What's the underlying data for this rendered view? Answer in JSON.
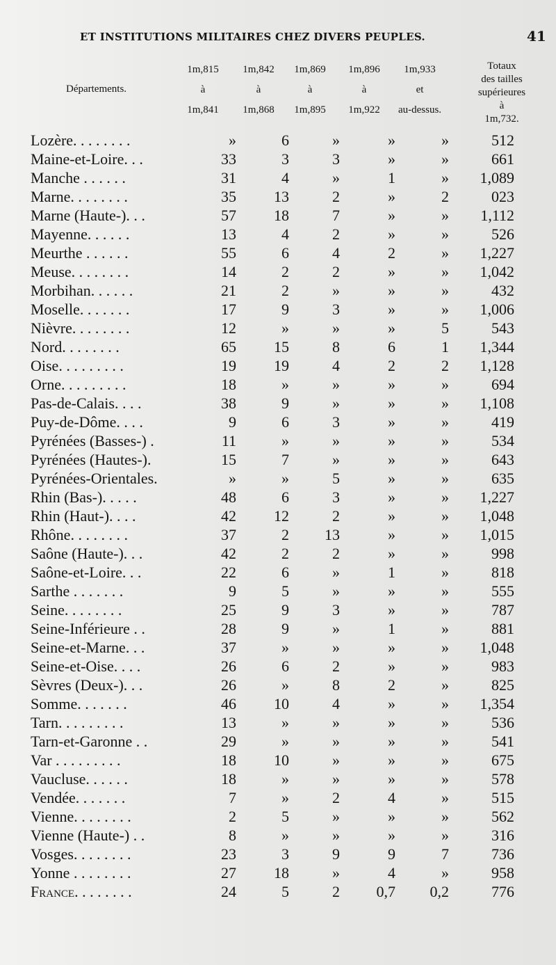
{
  "running_head": "ET INSTITUTIONS MILITAIRES CHEZ DIVERS PEUPLES.",
  "page_number": "41",
  "table": {
    "department_header": "Départements.",
    "columns": [
      {
        "from": "1m,815",
        "sep": "à",
        "to": "1m,841"
      },
      {
        "from": "1m,842",
        "sep": "à",
        "to": "1m,868"
      },
      {
        "from": "1m,869",
        "sep": "à",
        "to": "1m,895"
      },
      {
        "from": "1m,896",
        "sep": "à",
        "to": "1m,922"
      },
      {
        "from": "1m,933",
        "sep": "et",
        "to": "au-dessus."
      }
    ],
    "total_header": [
      "Totaux",
      "des tailles",
      "supérieures",
      "à",
      "1m,732."
    ],
    "rows": [
      [
        "Lozère. . . . . . . .",
        "»",
        "6",
        "»",
        "»",
        "»",
        "512"
      ],
      [
        "Maine-et-Loire. . .",
        "33",
        "3",
        "3",
        "»",
        "»",
        "661"
      ],
      [
        "Manche . . . . . .",
        "31",
        "4",
        "»",
        "1",
        "»",
        "1,089"
      ],
      [
        "Marne. . . . . . . .",
        "35",
        "13",
        "2",
        "»",
        "2",
        "023"
      ],
      [
        "Marne (Haute-). . .",
        "57",
        "18",
        "7",
        "»",
        "»",
        "1,112"
      ],
      [
        "Mayenne. . . . . .",
        "13",
        "4",
        "2",
        "»",
        "»",
        "526"
      ],
      [
        "Meurthe . . . . . .",
        "55",
        "6",
        "4",
        "2",
        "»",
        "1,227"
      ],
      [
        "Meuse. . . . . . . .",
        "14",
        "2",
        "2",
        "»",
        "»",
        "1,042"
      ],
      [
        "Morbihan. . . . . .",
        "21",
        "2",
        "»",
        "»",
        "»",
        "432"
      ],
      [
        "Moselle. . . . . . .",
        "17",
        "9",
        "3",
        "»",
        "»",
        "1,006"
      ],
      [
        "Nièvre. . . . . . . .",
        "12",
        "»",
        "»",
        "»",
        "5",
        "543"
      ],
      [
        "Nord. . . . . . . .",
        "65",
        "15",
        "8",
        "6",
        "1",
        "1,344"
      ],
      [
        "Oise. . . . . . . . .",
        "19",
        "19",
        "4",
        "2",
        "2",
        "1,128"
      ],
      [
        "Orne. . . . . . . . .",
        "18",
        "»",
        "»",
        "»",
        "»",
        "694"
      ],
      [
        "Pas-de-Calais. . . .",
        "38",
        "9",
        "»",
        "»",
        "»",
        "1,108"
      ],
      [
        "Puy-de-Dôme. . . .",
        "9",
        "6",
        "3",
        "»",
        "»",
        "419"
      ],
      [
        "Pyrénées (Basses-) .",
        "11",
        "»",
        "»",
        "»",
        "»",
        "534"
      ],
      [
        "Pyrénées (Hautes-).",
        "15",
        "7",
        "»",
        "»",
        "»",
        "643"
      ],
      [
        "Pyrénées-Orientales.",
        "»",
        "»",
        "5",
        "»",
        "»",
        "635"
      ],
      [
        "Rhin (Bas-). . . . .",
        "48",
        "6",
        "3",
        "»",
        "»",
        "1,227"
      ],
      [
        "Rhin (Haut-). . . .",
        "42",
        "12",
        "2",
        "»",
        "»",
        "1,048"
      ],
      [
        "Rhône. . . . . . . .",
        "37",
        "2",
        "13",
        "»",
        "»",
        "1,015"
      ],
      [
        "Saône (Haute-). . .",
        "42",
        "2",
        "2",
        "»",
        "»",
        "998"
      ],
      [
        "Saône-et-Loire. . .",
        "22",
        "6",
        "»",
        "1",
        "»",
        "818"
      ],
      [
        "Sarthe . . . . . . .",
        "9",
        "5",
        "»",
        "»",
        "»",
        "555"
      ],
      [
        "Seine. . . . . . . .",
        "25",
        "9",
        "3",
        "»",
        "»",
        "787"
      ],
      [
        "Seine-Inférieure . .",
        "28",
        "9",
        "»",
        "1",
        "»",
        "881"
      ],
      [
        "Seine-et-Marne. . .",
        "37",
        "»",
        "»",
        "»",
        "»",
        "1,048"
      ],
      [
        "Seine-et-Oise. . . .",
        "26",
        "6",
        "2",
        "»",
        "»",
        "983"
      ],
      [
        "Sèvres (Deux-). . .",
        "26",
        "»",
        "8",
        "2",
        "»",
        "825"
      ],
      [
        "Somme. . . . . . .",
        "46",
        "10",
        "4",
        "»",
        "»",
        "1,354"
      ],
      [
        "Tarn. . . . . . . . .",
        "13",
        "»",
        "»",
        "»",
        "»",
        "536"
      ],
      [
        "Tarn-et-Garonne . .",
        "29",
        "»",
        "»",
        "»",
        "»",
        "541"
      ],
      [
        "Var . . . . . . . . .",
        "18",
        "10",
        "»",
        "»",
        "»",
        "675"
      ],
      [
        "Vaucluse. . . . . .",
        "18",
        "»",
        "»",
        "»",
        "»",
        "578"
      ],
      [
        "Vendée. . . . . . .",
        "7",
        "»",
        "2",
        "4",
        "»",
        "515"
      ],
      [
        "Vienne. . . . . . . .",
        "2",
        "5",
        "»",
        "»",
        "»",
        "562"
      ],
      [
        "Vienne (Haute-) . .",
        "8",
        "»",
        "»",
        "»",
        "»",
        "316"
      ],
      [
        "Vosges. . . . . . . .",
        "23",
        "3",
        "9",
        "9",
        "7",
        "736"
      ],
      [
        "Yonne . . . . . . . .",
        "27",
        "18",
        "»",
        "4",
        "»",
        "958"
      ],
      [
        "France. . . . . . . .",
        "24",
        "5",
        "2",
        "0,7",
        "0,2",
        "776"
      ]
    ]
  }
}
